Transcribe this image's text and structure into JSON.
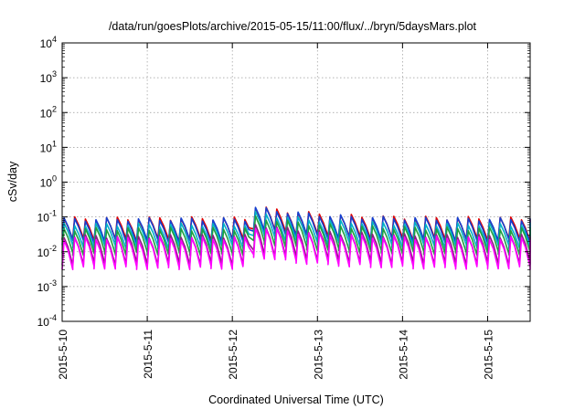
{
  "chart_data": {
    "type": "line",
    "title": "/data/run/goesPlots/archive/2015-05-15/11:00/flux/../bryn/5daysMars.plot",
    "xlabel": "Coordinated Universal Time (UTC)",
    "ylabel": "cSv/day",
    "y_scale": "log",
    "ylim": [
      0.0001,
      10000
    ],
    "y_ticks": [
      {
        "exp": "-4",
        "value": 0.0001
      },
      {
        "exp": "-3",
        "value": 0.001
      },
      {
        "exp": "-2",
        "value": 0.01
      },
      {
        "exp": "-1",
        "value": 0.1
      },
      {
        "exp": "0",
        "value": 1
      },
      {
        "exp": "1",
        "value": 10
      },
      {
        "exp": "2",
        "value": 100
      },
      {
        "exp": "3",
        "value": 1000
      },
      {
        "exp": "4",
        "value": 10000
      }
    ],
    "y_tick_base": "10",
    "xlim": [
      "2015-05-10",
      "2015-05-15 12:00"
    ],
    "x_ticks": [
      "2015-5-10",
      "2015-5-11",
      "2015-5-12",
      "2015-5-13",
      "2015-5-14",
      "2015-5-15"
    ],
    "grid": true,
    "legend": "none",
    "cycles_per_day": 8,
    "enhancement": {
      "start": "2015-05-12 06:00",
      "peak_factor": 2.2,
      "decay_days": 0.6
    },
    "series": [
      {
        "color": "#e00000",
        "peak": 0.09,
        "trough": 0.022
      },
      {
        "color": "#1540d0",
        "peak": 0.085,
        "trough": 0.02
      },
      {
        "color": "#00b0c8",
        "peak": 0.06,
        "trough": 0.014
      },
      {
        "color": "#20a040",
        "peak": 0.045,
        "trough": 0.009
      },
      {
        "color": "#8a2080",
        "peak": 0.028,
        "trough": 0.0045
      },
      {
        "color": "#ff00ff",
        "peak": 0.024,
        "trough": 0.0035
      }
    ]
  }
}
